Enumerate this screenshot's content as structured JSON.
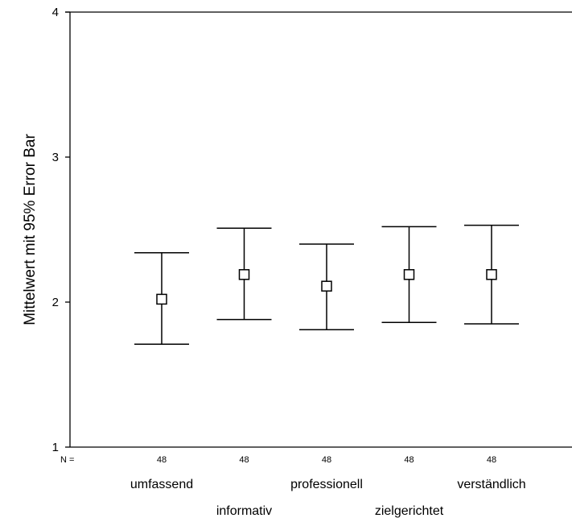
{
  "chart_data": {
    "type": "errorbar",
    "ylabel": "Mittelwert mit 95% Error Bar",
    "xlabel": "",
    "ylim": [
      1,
      4
    ],
    "yticks": [
      "1",
      "2",
      "3",
      "4"
    ],
    "n_prefix": "N =",
    "categories": [
      "umfassend",
      "informativ",
      "professionell",
      "zielgerichtet",
      "verständlich"
    ],
    "n": [
      "48",
      "48",
      "48",
      "48",
      "48"
    ],
    "mean": [
      2.02,
      2.19,
      2.11,
      2.19,
      2.19
    ],
    "lower": [
      1.71,
      1.88,
      1.81,
      1.86,
      1.85
    ],
    "upper": [
      2.34,
      2.51,
      2.4,
      2.52,
      2.53
    ]
  }
}
